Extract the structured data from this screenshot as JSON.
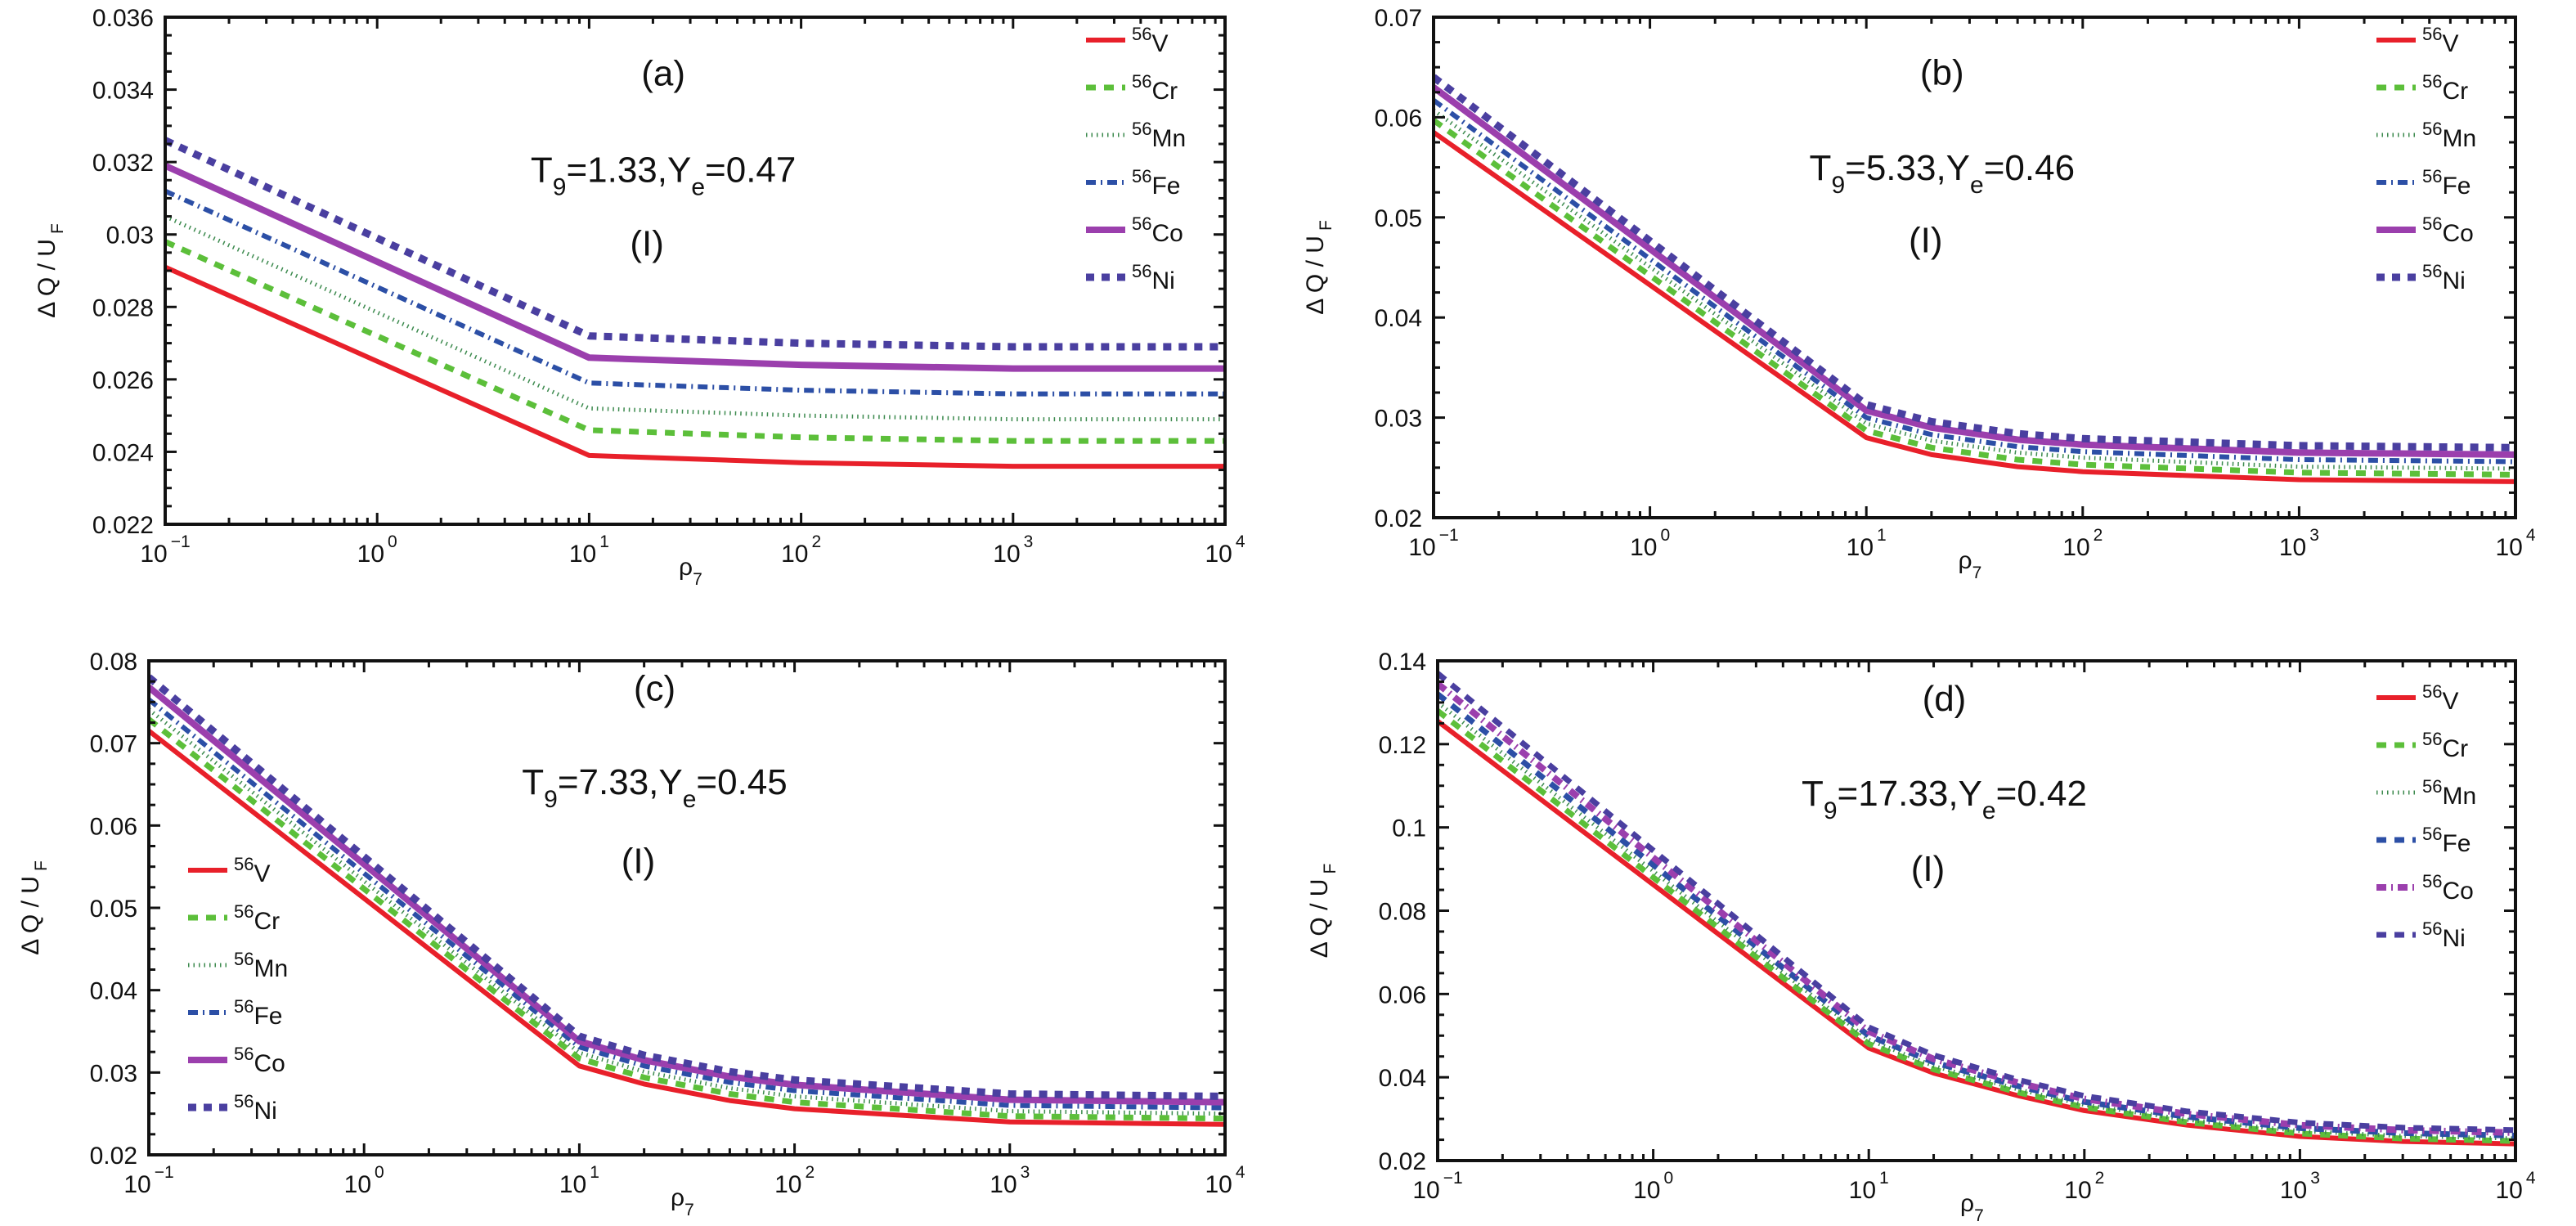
{
  "chart_data": [
    {
      "type": "line",
      "panel": "(a)",
      "annotation": {
        "T9": "1.33",
        "Ye": "0.47",
        "case": "(I)"
      },
      "xlabel": "ρ7",
      "ylabel": "ΔQ / U_F",
      "xscale": "log",
      "xlim": [
        0.1,
        10000
      ],
      "ylim": [
        0.022,
        0.036
      ],
      "yticks": [
        0.022,
        0.024,
        0.026,
        0.028,
        0.03,
        0.032,
        0.034,
        0.036
      ],
      "ytick_labels": [
        "0.022",
        "0.024",
        "0.026",
        "0.028",
        "0.03",
        "0.032",
        "0.034",
        "0.036"
      ],
      "xticks": [
        0.1,
        1,
        10,
        100,
        1000,
        10000
      ],
      "xtick_labels": [
        [
          "10",
          "−1"
        ],
        [
          "10",
          "0"
        ],
        [
          "10",
          "1"
        ],
        [
          "10",
          "2"
        ],
        [
          "10",
          "3"
        ],
        [
          "10",
          "4"
        ]
      ],
      "legend_position": "top-right",
      "x": [
        0.1,
        10,
        100,
        1000,
        10000
      ],
      "series": [
        {
          "name": "V",
          "mass": "56",
          "style": "solid",
          "color": "#e8202a",
          "values": [
            0.0291,
            0.0239,
            0.0237,
            0.0236,
            0.0236
          ]
        },
        {
          "name": "Cr",
          "mass": "56",
          "style": "dashed",
          "color": "#5cbf3a",
          "values": [
            0.0298,
            0.0246,
            0.0244,
            0.0243,
            0.0243
          ]
        },
        {
          "name": "Mn",
          "mass": "56",
          "style": "dotted",
          "color": "#3c8a4e",
          "values": [
            0.0305,
            0.0252,
            0.025,
            0.0249,
            0.0249
          ]
        },
        {
          "name": "Fe",
          "mass": "56",
          "style": "dashdot",
          "color": "#2c4fa6",
          "values": [
            0.0312,
            0.0259,
            0.0257,
            0.0256,
            0.0256
          ]
        },
        {
          "name": "Co",
          "mass": "56",
          "style": "solid-thick",
          "color": "#9b3fad",
          "values": [
            0.0319,
            0.0266,
            0.0264,
            0.0263,
            0.0263
          ]
        },
        {
          "name": "Ni",
          "mass": "56",
          "style": "square-dot",
          "color": "#4a3fa0",
          "values": [
            0.0326,
            0.0272,
            0.027,
            0.0269,
            0.0269
          ]
        }
      ]
    },
    {
      "type": "line",
      "panel": "(b)",
      "annotation": {
        "T9": "5.33",
        "Ye": "0.46",
        "case": "(I)"
      },
      "xlabel": "ρ7",
      "ylabel": "ΔQ / U_F",
      "xscale": "log",
      "xlim": [
        0.1,
        10000
      ],
      "ylim": [
        0.02,
        0.07
      ],
      "yticks": [
        0.02,
        0.03,
        0.04,
        0.05,
        0.06,
        0.07
      ],
      "ytick_labels": [
        "0.02",
        "0.03",
        "0.04",
        "0.05",
        "0.06",
        "0.07"
      ],
      "xticks": [
        0.1,
        1,
        10,
        100,
        1000,
        10000
      ],
      "xtick_labels": [
        [
          "10",
          "−1"
        ],
        [
          "10",
          "0"
        ],
        [
          "10",
          "1"
        ],
        [
          "10",
          "2"
        ],
        [
          "10",
          "3"
        ],
        [
          "10",
          "4"
        ]
      ],
      "legend_position": "top-right",
      "x": [
        0.1,
        10,
        20,
        50,
        100,
        1000,
        10000
      ],
      "series": [
        {
          "name": "V",
          "mass": "56",
          "style": "solid",
          "color": "#e8202a",
          "values": [
            0.0585,
            0.028,
            0.0263,
            0.0251,
            0.0246,
            0.0238,
            0.0236
          ]
        },
        {
          "name": "Cr",
          "mass": "56",
          "style": "dashed",
          "color": "#5cbf3a",
          "values": [
            0.0597,
            0.0287,
            0.027,
            0.0258,
            0.0253,
            0.0245,
            0.0243
          ]
        },
        {
          "name": "Mn",
          "mass": "56",
          "style": "dotted",
          "color": "#3c8a4e",
          "values": [
            0.0607,
            0.0294,
            0.0277,
            0.0265,
            0.026,
            0.0251,
            0.0249
          ]
        },
        {
          "name": "Fe",
          "mass": "56",
          "style": "dashdot",
          "color": "#2c4fa6",
          "values": [
            0.0617,
            0.03,
            0.0283,
            0.0271,
            0.0266,
            0.0258,
            0.0256
          ]
        },
        {
          "name": "Co",
          "mass": "56",
          "style": "solid-thick",
          "color": "#9b3fad",
          "values": [
            0.063,
            0.0307,
            0.029,
            0.0278,
            0.0273,
            0.0265,
            0.0263
          ]
        },
        {
          "name": "Ni",
          "mass": "56",
          "style": "square-dot",
          "color": "#4a3fa0",
          "values": [
            0.064,
            0.0313,
            0.0296,
            0.0284,
            0.0279,
            0.0272,
            0.027
          ]
        }
      ]
    },
    {
      "type": "line",
      "panel": "(c)",
      "annotation": {
        "T9": "7.33",
        "Ye": "0.45",
        "case": "(I)"
      },
      "xlabel": "ρ7",
      "ylabel": "ΔQ / U_F",
      "xscale": "log",
      "xlim": [
        0.1,
        10000
      ],
      "ylim": [
        0.02,
        0.08
      ],
      "yticks": [
        0.02,
        0.03,
        0.04,
        0.05,
        0.06,
        0.07,
        0.08
      ],
      "ytick_labels": [
        "0.02",
        "0.03",
        "0.04",
        "0.05",
        "0.06",
        "0.07",
        "0.08"
      ],
      "xticks": [
        0.1,
        1,
        10,
        100,
        1000,
        10000
      ],
      "xtick_labels": [
        [
          "10",
          "−1"
        ],
        [
          "10",
          "0"
        ],
        [
          "10",
          "1"
        ],
        [
          "10",
          "2"
        ],
        [
          "10",
          "3"
        ],
        [
          "10",
          "4"
        ]
      ],
      "legend_position": "center-left",
      "x": [
        0.1,
        10,
        20,
        50,
        100,
        1000,
        10000
      ],
      "series": [
        {
          "name": "V",
          "mass": "56",
          "style": "solid",
          "color": "#e8202a",
          "values": [
            0.0715,
            0.0308,
            0.0286,
            0.0266,
            0.0256,
            0.024,
            0.0237
          ]
        },
        {
          "name": "Cr",
          "mass": "56",
          "style": "dashed",
          "color": "#5cbf3a",
          "values": [
            0.0729,
            0.0317,
            0.0294,
            0.0274,
            0.0264,
            0.0247,
            0.0244
          ]
        },
        {
          "name": "Mn",
          "mass": "56",
          "style": "dotted",
          "color": "#3c8a4e",
          "values": [
            0.0741,
            0.0324,
            0.0301,
            0.0281,
            0.0271,
            0.0253,
            0.025
          ]
        },
        {
          "name": "Fe",
          "mass": "56",
          "style": "dashdot",
          "color": "#2c4fa6",
          "values": [
            0.0753,
            0.0331,
            0.0308,
            0.0288,
            0.0278,
            0.026,
            0.0257
          ]
        },
        {
          "name": "Co",
          "mass": "56",
          "style": "solid-thick",
          "color": "#9b3fad",
          "values": [
            0.0768,
            0.0338,
            0.0315,
            0.0295,
            0.0285,
            0.0267,
            0.0264
          ]
        },
        {
          "name": "Ni",
          "mass": "56",
          "style": "square-dot",
          "color": "#4a3fa0",
          "values": [
            0.078,
            0.0344,
            0.0321,
            0.0301,
            0.0291,
            0.0274,
            0.0271
          ]
        }
      ]
    },
    {
      "type": "line",
      "panel": "(d)",
      "annotation": {
        "T9": "17.33",
        "Ye": "0.42",
        "case": "(I)"
      },
      "xlabel": "ρ7",
      "ylabel": "ΔQ / U_F",
      "xscale": "log",
      "xlim": [
        0.1,
        10000
      ],
      "ylim": [
        0.02,
        0.14
      ],
      "yticks": [
        0.02,
        0.04,
        0.06,
        0.08,
        0.1,
        0.12,
        0.14
      ],
      "ytick_labels": [
        "0.02",
        "0.04",
        "0.06",
        "0.08",
        "0.1",
        "0.12",
        "0.14"
      ],
      "xticks": [
        0.1,
        1,
        10,
        100,
        1000,
        10000
      ],
      "xtick_labels": [
        [
          "10",
          "−1"
        ],
        [
          "10",
          "0"
        ],
        [
          "10",
          "1"
        ],
        [
          "10",
          "2"
        ],
        [
          "10",
          "3"
        ],
        [
          "10",
          "4"
        ]
      ],
      "legend_position": "top-right",
      "x": [
        0.1,
        10,
        20,
        50,
        100,
        300,
        1000,
        3000,
        10000
      ],
      "series": [
        {
          "name": "V",
          "mass": "56",
          "style": "solid",
          "color": "#e8202a",
          "values": [
            0.1255,
            0.047,
            0.041,
            0.0355,
            0.032,
            0.0285,
            0.0258,
            0.0246,
            0.024
          ]
        },
        {
          "name": "Cr",
          "mass": "56",
          "style": "dashed",
          "color": "#5cbf3a",
          "values": [
            0.128,
            0.048,
            0.0419,
            0.0363,
            0.0328,
            0.0292,
            0.0265,
            0.0253,
            0.0247
          ]
        },
        {
          "name": "Mn",
          "mass": "56",
          "style": "dotted",
          "color": "#3c8a4e",
          "values": [
            0.13,
            0.049,
            0.0427,
            0.037,
            0.0334,
            0.0298,
            0.0271,
            0.0259,
            0.0253
          ]
        },
        {
          "name": "Fe",
          "mass": "56",
          "style": "dashed",
          "color": "#2c4fa6",
          "values": [
            0.132,
            0.05,
            0.0436,
            0.0378,
            0.0341,
            0.0305,
            0.0278,
            0.0266,
            0.026
          ]
        },
        {
          "name": "Co",
          "mass": "56",
          "style": "dashdot-thick",
          "color": "#9b3fad",
          "values": [
            0.1345,
            0.051,
            0.0444,
            0.0386,
            0.0348,
            0.0312,
            0.0285,
            0.0273,
            0.0267
          ]
        },
        {
          "name": "Ni",
          "mass": "56",
          "style": "dashed",
          "color": "#4a3fa0",
          "values": [
            0.137,
            0.052,
            0.0453,
            0.0393,
            0.0355,
            0.0318,
            0.0291,
            0.0279,
            0.0273
          ]
        }
      ]
    }
  ]
}
